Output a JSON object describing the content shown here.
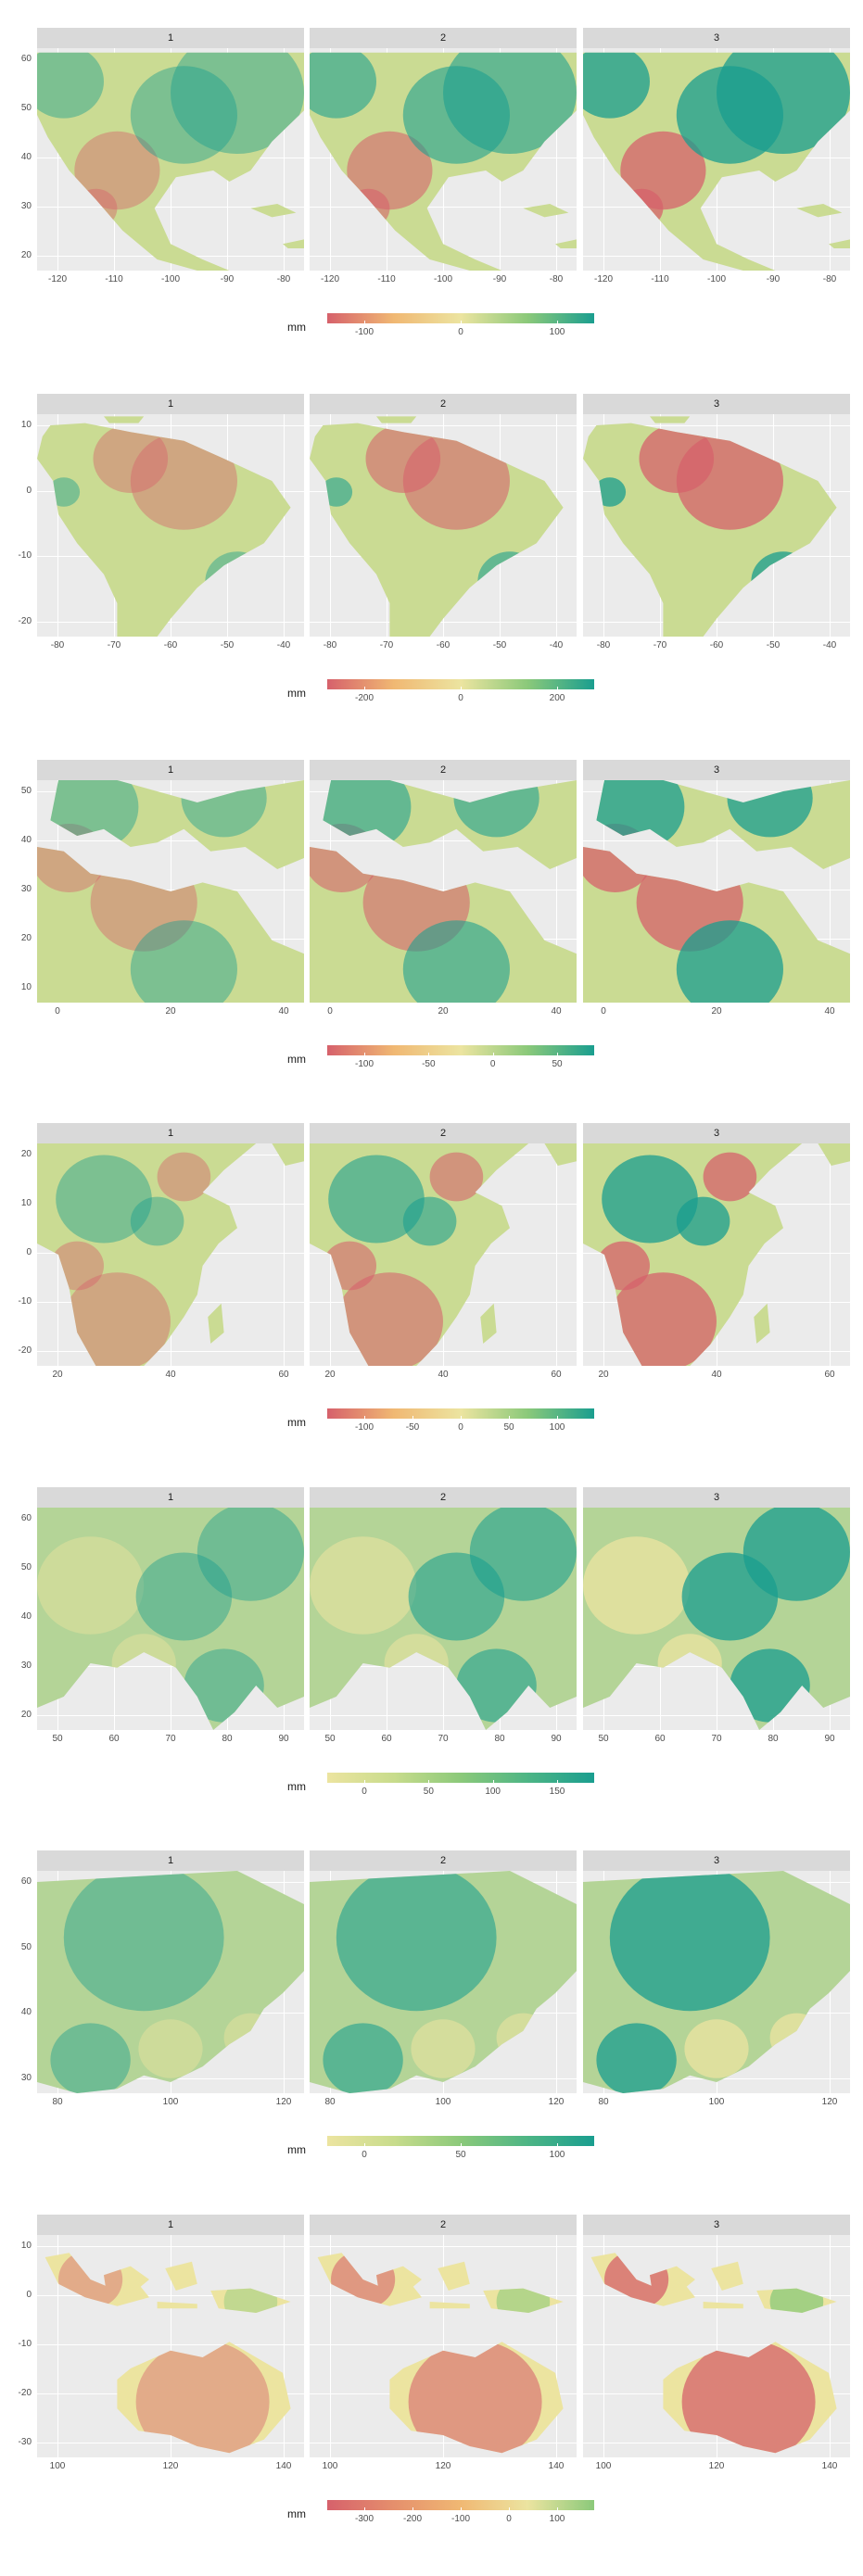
{
  "panel_labels": [
    "1",
    "2",
    "3"
  ],
  "legend_title": "mm",
  "colors": {
    "low": "#d6616b",
    "mid_low": "#f0b873",
    "mid": "#ece4a0",
    "mid_high": "#8bc97a",
    "high": "#1a9e8f",
    "background": "#ebebeb",
    "strip": "#d9d9d9"
  },
  "figures": [
    {
      "region": "north-america",
      "y_ticks": [
        "60",
        "50",
        "40",
        "30",
        "20"
      ],
      "x_ticks": [
        "-120",
        "-110",
        "-100",
        "-90",
        "-80"
      ],
      "legend_ticks": [
        "-100",
        "0",
        "100"
      ],
      "legend_gradient": [
        "#d6616b",
        "#f0b873",
        "#ece4a0",
        "#8bc97a",
        "#1a9e8f"
      ],
      "panel_intensity": [
        0.35,
        0.6,
        0.9
      ]
    },
    {
      "region": "south-america",
      "y_ticks": [
        "10",
        "0",
        "-10",
        "-20"
      ],
      "x_ticks": [
        "-80",
        "-70",
        "-60",
        "-50",
        "-40"
      ],
      "legend_ticks": [
        "-200",
        "0",
        "200"
      ],
      "legend_gradient": [
        "#d6616b",
        "#f0b873",
        "#ece4a0",
        "#8bc97a",
        "#1a9e8f"
      ],
      "panel_intensity": [
        0.35,
        0.6,
        0.9
      ]
    },
    {
      "region": "mediterranean-sahara",
      "y_ticks": [
        "50",
        "40",
        "30",
        "20",
        "10"
      ],
      "x_ticks": [
        "0",
        "20",
        "40"
      ],
      "legend_ticks": [
        "-100",
        "-50",
        "0",
        "50"
      ],
      "legend_gradient": [
        "#d6616b",
        "#f0b873",
        "#ece4a0",
        "#8bc97a",
        "#1a9e8f"
      ],
      "panel_intensity": [
        0.35,
        0.6,
        0.9
      ]
    },
    {
      "region": "africa",
      "y_ticks": [
        "20",
        "10",
        "0",
        "-10",
        "-20"
      ],
      "x_ticks": [
        "20",
        "40",
        "60"
      ],
      "legend_ticks": [
        "-100",
        "-50",
        "0",
        "50",
        "100"
      ],
      "legend_gradient": [
        "#d6616b",
        "#f0b873",
        "#ece4a0",
        "#8bc97a",
        "#1a9e8f"
      ],
      "panel_intensity": [
        0.35,
        0.6,
        0.9
      ]
    },
    {
      "region": "central-south-asia",
      "y_ticks": [
        "60",
        "50",
        "40",
        "30",
        "20"
      ],
      "x_ticks": [
        "50",
        "60",
        "70",
        "80",
        "90"
      ],
      "legend_ticks": [
        "0",
        "50",
        "100",
        "150"
      ],
      "legend_gradient": [
        "#ece4a0",
        "#c8dc8c",
        "#8bc97a",
        "#4db585",
        "#1a9e8f"
      ],
      "panel_intensity": [
        0.35,
        0.6,
        0.9
      ]
    },
    {
      "region": "east-asia-siberia",
      "y_ticks": [
        "60",
        "50",
        "40",
        "30"
      ],
      "x_ticks": [
        "80",
        "100",
        "120"
      ],
      "legend_ticks": [
        "0",
        "50",
        "100"
      ],
      "legend_gradient": [
        "#ece4a0",
        "#c8dc8c",
        "#8bc97a",
        "#4db585",
        "#1a9e8f"
      ],
      "panel_intensity": [
        0.35,
        0.6,
        0.9
      ]
    },
    {
      "region": "maritime-asia-australia",
      "y_ticks": [
        "10",
        "0",
        "-10",
        "-20",
        "-30"
      ],
      "x_ticks": [
        "100",
        "120",
        "140"
      ],
      "legend_ticks": [
        "-300",
        "-200",
        "-100",
        "0",
        "100"
      ],
      "legend_gradient": [
        "#d6616b",
        "#e58f6c",
        "#f0b873",
        "#ece4a0",
        "#8bc97a"
      ],
      "panel_intensity": [
        0.35,
        0.6,
        0.9
      ]
    }
  ]
}
